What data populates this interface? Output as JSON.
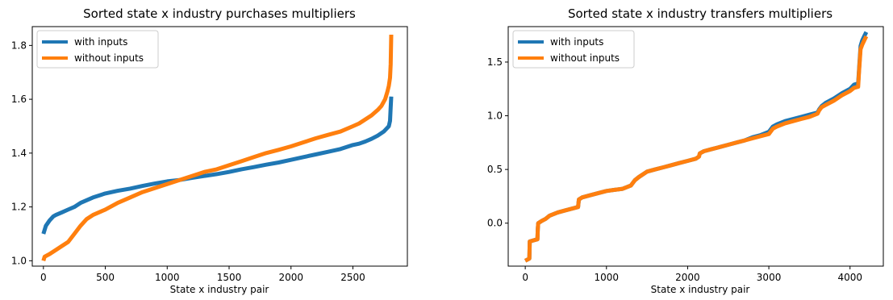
{
  "chart_data": [
    {
      "type": "line",
      "title": "Sorted state x industry purchases multipliers",
      "xlabel": "State x industry pair",
      "ylabel": "",
      "xlim": [
        -90,
        2940
      ],
      "ylim": [
        0.98,
        1.87
      ],
      "xticks": [
        0,
        500,
        1000,
        1500,
        2000,
        2500
      ],
      "xtick_labels": [
        "0",
        "500",
        "1000",
        "1500",
        "2000",
        "2500"
      ],
      "yticks": [
        1.0,
        1.2,
        1.4,
        1.6,
        1.8
      ],
      "ytick_labels": [
        "1.0",
        "1.2",
        "1.4",
        "1.6",
        "1.8"
      ],
      "legend_position": "top-left",
      "series": [
        {
          "name": "with inputs",
          "color": "#1f77b4",
          "x": [
            0,
            20,
            50,
            80,
            100,
            150,
            200,
            250,
            300,
            400,
            500,
            600,
            700,
            800,
            900,
            1000,
            1100,
            1200,
            1300,
            1400,
            1500,
            1600,
            1700,
            1800,
            1900,
            2000,
            2100,
            2200,
            2300,
            2400,
            2500,
            2550,
            2600,
            2650,
            2700,
            2750,
            2770,
            2790,
            2800,
            2805,
            2810
          ],
          "y": [
            1.1,
            1.13,
            1.15,
            1.165,
            1.17,
            1.18,
            1.19,
            1.2,
            1.215,
            1.235,
            1.25,
            1.26,
            1.268,
            1.278,
            1.287,
            1.295,
            1.3,
            1.308,
            1.315,
            1.322,
            1.33,
            1.34,
            1.348,
            1.357,
            1.365,
            1.375,
            1.385,
            1.395,
            1.405,
            1.415,
            1.43,
            1.435,
            1.443,
            1.453,
            1.465,
            1.48,
            1.49,
            1.5,
            1.52,
            1.57,
            1.61
          ]
        },
        {
          "name": "without inputs",
          "color": "#ff7f0e",
          "x": [
            0,
            10,
            50,
            100,
            150,
            200,
            250,
            300,
            350,
            400,
            500,
            600,
            700,
            800,
            900,
            1000,
            1100,
            1200,
            1300,
            1400,
            1500,
            1600,
            1700,
            1800,
            1900,
            2000,
            2100,
            2200,
            2300,
            2400,
            2500,
            2550,
            2600,
            2650,
            2700,
            2730,
            2760,
            2780,
            2790,
            2800,
            2805,
            2810
          ],
          "y": [
            1.0,
            1.015,
            1.025,
            1.04,
            1.055,
            1.07,
            1.1,
            1.13,
            1.155,
            1.17,
            1.19,
            1.215,
            1.235,
            1.255,
            1.27,
            1.285,
            1.3,
            1.315,
            1.33,
            1.34,
            1.355,
            1.37,
            1.385,
            1.4,
            1.412,
            1.425,
            1.44,
            1.455,
            1.468,
            1.48,
            1.5,
            1.51,
            1.525,
            1.54,
            1.56,
            1.575,
            1.6,
            1.63,
            1.65,
            1.68,
            1.73,
            1.84
          ]
        }
      ]
    },
    {
      "type": "line",
      "title": "Sorted state x industry transfers multipliers",
      "xlabel": "State x industry pair",
      "ylabel": "",
      "xlim": [
        -210,
        4410
      ],
      "ylim": [
        -0.4,
        1.83
      ],
      "xticks": [
        0,
        1000,
        2000,
        3000,
        4000
      ],
      "xtick_labels": [
        "0",
        "1000",
        "2000",
        "3000",
        "4000"
      ],
      "yticks": [
        0.0,
        0.5,
        1.0,
        1.5
      ],
      "ytick_labels": [
        "0.0",
        "0.5",
        "1.0",
        "1.5"
      ],
      "legend_position": "top-left",
      "series": [
        {
          "name": "with inputs",
          "color": "#1f77b4",
          "x": [
            0,
            50,
            55,
            150,
            155,
            160,
            200,
            250,
            300,
            400,
            500,
            600,
            650,
            660,
            700,
            800,
            900,
            1000,
            1100,
            1200,
            1300,
            1350,
            1400,
            1500,
            1600,
            1700,
            1800,
            1900,
            2000,
            2100,
            2140,
            2150,
            2200,
            2300,
            2400,
            2500,
            2600,
            2700,
            2800,
            2900,
            3000,
            3050,
            3100,
            3200,
            3300,
            3400,
            3500,
            3600,
            3620,
            3650,
            3700,
            3800,
            3900,
            4000,
            4050,
            4100,
            4110,
            4130,
            4150,
            4180,
            4200
          ],
          "y": [
            -0.35,
            -0.33,
            -0.17,
            -0.15,
            -0.05,
            0.0,
            0.02,
            0.04,
            0.07,
            0.1,
            0.12,
            0.14,
            0.15,
            0.22,
            0.24,
            0.26,
            0.28,
            0.3,
            0.31,
            0.32,
            0.35,
            0.4,
            0.43,
            0.48,
            0.5,
            0.52,
            0.54,
            0.56,
            0.58,
            0.6,
            0.62,
            0.65,
            0.67,
            0.69,
            0.71,
            0.73,
            0.75,
            0.77,
            0.8,
            0.82,
            0.85,
            0.9,
            0.92,
            0.95,
            0.97,
            0.99,
            1.01,
            1.03,
            1.06,
            1.09,
            1.12,
            1.16,
            1.21,
            1.25,
            1.29,
            1.3,
            1.42,
            1.65,
            1.7,
            1.75,
            1.78
          ]
        },
        {
          "name": "without inputs",
          "color": "#ff7f0e",
          "x": [
            0,
            50,
            55,
            150,
            155,
            160,
            200,
            250,
            300,
            400,
            500,
            600,
            650,
            660,
            700,
            800,
            900,
            1000,
            1100,
            1200,
            1300,
            1350,
            1400,
            1500,
            1600,
            1700,
            1800,
            1900,
            2000,
            2100,
            2140,
            2150,
            2200,
            2300,
            2400,
            2500,
            2600,
            2700,
            2800,
            2900,
            3000,
            3050,
            3100,
            3200,
            3300,
            3400,
            3500,
            3600,
            3620,
            3650,
            3700,
            3800,
            3900,
            4000,
            4050,
            4100,
            4110,
            4130,
            4150,
            4180,
            4200
          ],
          "y": [
            -0.35,
            -0.33,
            -0.17,
            -0.15,
            -0.05,
            0.0,
            0.02,
            0.04,
            0.07,
            0.1,
            0.12,
            0.14,
            0.15,
            0.22,
            0.24,
            0.26,
            0.28,
            0.3,
            0.31,
            0.32,
            0.35,
            0.4,
            0.43,
            0.48,
            0.5,
            0.52,
            0.54,
            0.56,
            0.58,
            0.6,
            0.62,
            0.65,
            0.67,
            0.69,
            0.71,
            0.73,
            0.75,
            0.77,
            0.79,
            0.81,
            0.83,
            0.88,
            0.9,
            0.93,
            0.95,
            0.97,
            0.99,
            1.02,
            1.05,
            1.08,
            1.1,
            1.14,
            1.19,
            1.23,
            1.26,
            1.27,
            1.4,
            1.62,
            1.66,
            1.71,
            1.74
          ]
        }
      ]
    }
  ]
}
